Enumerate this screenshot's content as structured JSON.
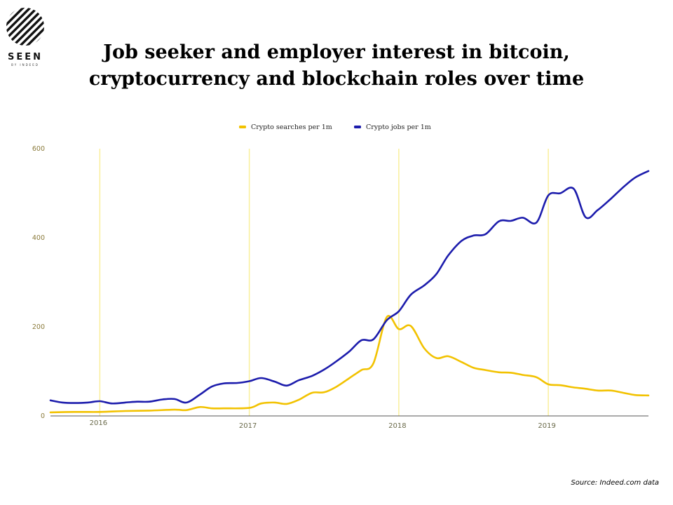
{
  "logo": {
    "word": "SEEN",
    "sub": "BY INDEED",
    "icon": "striped-circle-icon"
  },
  "title": {
    "line1": "Job seeker and employer interest in bitcoin,",
    "line2": "cryptocurrency and blockchain roles over time"
  },
  "source": "Source: Indeed.com data",
  "colors": {
    "searches": "#f2c200",
    "jobs": "#1c1cac",
    "grid": "#faef9c",
    "tick": "#8a7a3a"
  },
  "chart_data": {
    "type": "line",
    "x_tick_labels": [
      "2016",
      "2017",
      "2018",
      "2019"
    ],
    "x_tick_positions": [
      2016.0,
      2017.0,
      2018.0,
      2019.0
    ],
    "ylim": [
      0,
      600
    ],
    "xlim": [
      2015.67,
      2019.67
    ],
    "y_ticks": [
      "0",
      "200",
      "400",
      "600"
    ],
    "y_tick_values": [
      0,
      200,
      400,
      600
    ],
    "grid": "vertical at years",
    "legend": "top-center",
    "series": [
      {
        "name": "Crypto searches per 1m",
        "color": "#f2c200",
        "x": [
          2015.67,
          2015.83,
          2016.0,
          2016.17,
          2016.33,
          2016.5,
          2016.58,
          2016.67,
          2016.75,
          2016.83,
          2017.0,
          2017.08,
          2017.17,
          2017.25,
          2017.33,
          2017.42,
          2017.5,
          2017.58,
          2017.67,
          2017.75,
          2017.83,
          2017.92,
          2018.0,
          2018.08,
          2018.17,
          2018.25,
          2018.33,
          2018.42,
          2018.5,
          2018.58,
          2018.67,
          2018.75,
          2018.83,
          2018.92,
          2019.0,
          2019.08,
          2019.17,
          2019.25,
          2019.33,
          2019.42,
          2019.5,
          2019.58,
          2019.67
        ],
        "y": [
          8,
          9,
          9,
          11,
          12,
          14,
          13,
          20,
          17,
          17,
          18,
          28,
          30,
          27,
          36,
          52,
          53,
          65,
          85,
          103,
          118,
          222,
          195,
          202,
          152,
          130,
          134,
          121,
          108,
          103,
          98,
          97,
          92,
          87,
          71,
          69,
          64,
          61,
          57,
          57,
          52,
          47,
          46
        ]
      },
      {
        "name": "Crypto jobs per 1m",
        "color": "#1c1cac",
        "x": [
          2015.67,
          2015.75,
          2015.83,
          2015.92,
          2016.0,
          2016.08,
          2016.17,
          2016.25,
          2016.33,
          2016.42,
          2016.5,
          2016.58,
          2016.67,
          2016.75,
          2016.83,
          2016.92,
          2017.0,
          2017.08,
          2017.17,
          2017.25,
          2017.33,
          2017.42,
          2017.5,
          2017.58,
          2017.67,
          2017.75,
          2017.83,
          2017.92,
          2018.0,
          2018.08,
          2018.17,
          2018.25,
          2018.33,
          2018.42,
          2018.5,
          2018.58,
          2018.67,
          2018.75,
          2018.83,
          2018.92,
          2019.0,
          2019.08,
          2019.17,
          2019.25,
          2019.33,
          2019.42,
          2019.5,
          2019.58,
          2019.67
        ],
        "y": [
          35,
          30,
          29,
          30,
          33,
          28,
          30,
          32,
          32,
          37,
          38,
          30,
          48,
          66,
          73,
          74,
          78,
          85,
          77,
          68,
          80,
          90,
          104,
          122,
          145,
          170,
          172,
          215,
          235,
          272,
          293,
          318,
          360,
          393,
          405,
          408,
          437,
          438,
          445,
          434,
          495,
          500,
          510,
          446,
          462,
          488,
          513,
          535,
          550
        ]
      }
    ]
  }
}
